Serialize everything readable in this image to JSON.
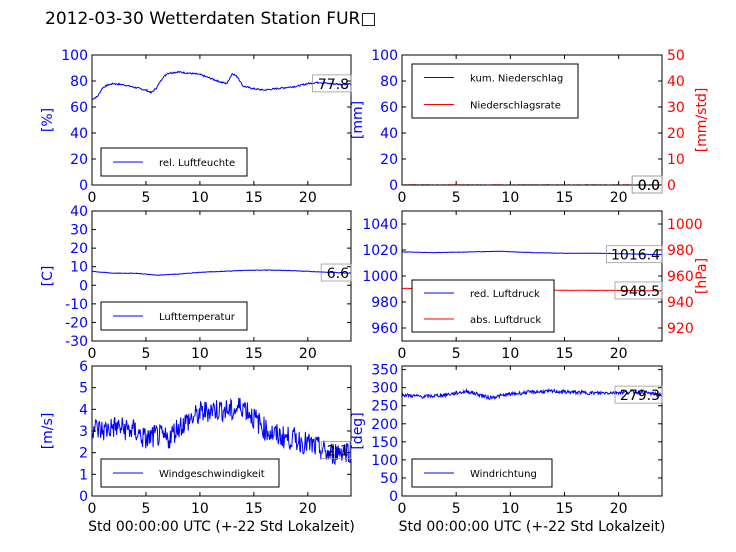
{
  "page": {
    "title": "2012-03-30 Wetterdaten Station FUR□"
  },
  "chart_data": [
    {
      "id": "humidity",
      "type": "line",
      "ylabel": "[%]",
      "xlabel": "",
      "xlim": [
        0,
        24
      ],
      "ylim": [
        0,
        100
      ],
      "xticks": [
        0,
        5,
        10,
        15,
        20
      ],
      "yticks": [
        0,
        20,
        40,
        60,
        80,
        100
      ],
      "last_value_label": "77.8",
      "legend": {
        "position": "lower-left",
        "entries": [
          {
            "name": "rel. Luftfeuchte",
            "color": "#0000ff"
          }
        ]
      },
      "series": [
        {
          "name": "rel. Luftfeuchte",
          "color": "#0000ff",
          "noise": 0.6,
          "points": [
            [
              0,
              66
            ],
            [
              0.5,
              68
            ],
            [
              1,
              75
            ],
            [
              1.5,
              77
            ],
            [
              2,
              78
            ],
            [
              3,
              77
            ],
            [
              4,
              75
            ],
            [
              5,
              73
            ],
            [
              5.5,
              71
            ],
            [
              6,
              75
            ],
            [
              6.5,
              82
            ],
            [
              7,
              86
            ],
            [
              8,
              87
            ],
            [
              9,
              86
            ],
            [
              10,
              85
            ],
            [
              11,
              82
            ],
            [
              12,
              79
            ],
            [
              12.5,
              78
            ],
            [
              13,
              86
            ],
            [
              13.5,
              83
            ],
            [
              14,
              76
            ],
            [
              15,
              74
            ],
            [
              16,
              73
            ],
            [
              17,
              74
            ],
            [
              18,
              75
            ],
            [
              19,
              76
            ],
            [
              20,
              78
            ],
            [
              21,
              79
            ],
            [
              22,
              78
            ],
            [
              23,
              77.5
            ],
            [
              24,
              77.8
            ]
          ]
        }
      ]
    },
    {
      "id": "precip",
      "type": "line",
      "ylabel": "[mm]",
      "y2label": "[mm/std]",
      "xlabel": "",
      "xlim": [
        0,
        24
      ],
      "ylim": [
        0,
        100
      ],
      "y2lim": [
        0,
        50
      ],
      "xticks": [
        0,
        5,
        10,
        15,
        20
      ],
      "yticks": [
        0,
        20,
        40,
        60,
        80,
        100
      ],
      "y2ticks": [
        0,
        10,
        20,
        30,
        40,
        50
      ],
      "last_value_label": "0.0",
      "last_value_label_2": "0.0",
      "legend": {
        "position": "top-left",
        "entries": [
          {
            "name": "kum. Niederschlag",
            "color": "#0000ff"
          },
          {
            "name": "Niederschlagsrate",
            "color": "#ff0000"
          }
        ]
      },
      "series": [
        {
          "name": "kum. Niederschlag",
          "color": "#0000ff",
          "noise": 0,
          "points": [
            [
              0,
              0
            ],
            [
              24,
              0
            ]
          ]
        },
        {
          "name": "Niederschlagsrate",
          "color": "#ff0000",
          "noise": 0.15,
          "axis": "y2",
          "points": [
            [
              0,
              0
            ],
            [
              24,
              0
            ]
          ]
        }
      ]
    },
    {
      "id": "temperature",
      "type": "line",
      "ylabel": "[C]",
      "xlabel": "",
      "xlim": [
        0,
        24
      ],
      "ylim": [
        -30,
        40
      ],
      "xticks": [
        0,
        5,
        10,
        15,
        20
      ],
      "yticks": [
        -30,
        -20,
        -10,
        0,
        10,
        20,
        30,
        40
      ],
      "last_value_label": "6.6",
      "legend": {
        "position": "lower-left",
        "entries": [
          {
            "name": "Lufttemperatur",
            "color": "#0000ff"
          }
        ]
      },
      "series": [
        {
          "name": "Lufttemperatur",
          "color": "#0000ff",
          "noise": 0.15,
          "points": [
            [
              0,
              7.5
            ],
            [
              2,
              6.5
            ],
            [
              4,
              6.5
            ],
            [
              6,
              5.5
            ],
            [
              8,
              6
            ],
            [
              10,
              7
            ],
            [
              12,
              7.5
            ],
            [
              14,
              8
            ],
            [
              16,
              8.2
            ],
            [
              18,
              8
            ],
            [
              20,
              7.5
            ],
            [
              22,
              7
            ],
            [
              24,
              6.6
            ]
          ]
        }
      ]
    },
    {
      "id": "pressure",
      "type": "line",
      "ylabel": "",
      "y2label": "[hPa]",
      "xlabel": "",
      "xlim": [
        0,
        24
      ],
      "ylim": [
        950,
        1050
      ],
      "y2lim": [
        910,
        1010
      ],
      "xticks": [
        0,
        5,
        10,
        15,
        20
      ],
      "yticks": [
        960,
        980,
        1000,
        1020,
        1040
      ],
      "y2ticks": [
        920,
        940,
        960,
        980,
        1000
      ],
      "last_value_label": "1016.4",
      "last_value_label_2": "948.5",
      "legend": {
        "position": "lower-left",
        "entries": [
          {
            "name": "red. Luftdruck",
            "color": "#0000ff"
          },
          {
            "name": "abs. Luftdruck",
            "color": "#ff0000"
          }
        ]
      },
      "series": [
        {
          "name": "red. Luftdruck",
          "color": "#0000ff",
          "noise": 0.15,
          "points": [
            [
              0,
              1018.5
            ],
            [
              3,
              1018
            ],
            [
              6,
              1018.5
            ],
            [
              9,
              1019
            ],
            [
              12,
              1018
            ],
            [
              15,
              1017.5
            ],
            [
              18,
              1017.5
            ],
            [
              21,
              1017
            ],
            [
              24,
              1016.4
            ]
          ]
        },
        {
          "name": "abs. Luftdruck",
          "color": "#ff0000",
          "noise": 0.15,
          "axis": "y2",
          "points": [
            [
              0,
              950.5
            ],
            [
              3,
              950
            ],
            [
              6,
              950.5
            ],
            [
              9,
              950.5
            ],
            [
              12,
              949.5
            ],
            [
              15,
              949
            ],
            [
              18,
              949
            ],
            [
              21,
              948.8
            ],
            [
              24,
              948.5
            ]
          ]
        }
      ]
    },
    {
      "id": "windspeed",
      "type": "line",
      "ylabel": "[m/s]",
      "xlabel": "Std 00:00:00 UTC (+-22 Std Lokalzeit)",
      "xlim": [
        0,
        24
      ],
      "ylim": [
        0,
        6
      ],
      "xticks": [
        0,
        5,
        10,
        15,
        20
      ],
      "yticks": [
        0,
        1,
        2,
        3,
        4,
        5,
        6
      ],
      "last_value_label": "2.1",
      "legend": {
        "position": "lower-left",
        "entries": [
          {
            "name": "Windgeschwindigkeit",
            "color": "#0000ff"
          }
        ]
      },
      "series": [
        {
          "name": "Windgeschwindigkeit",
          "color": "#0000ff",
          "noise": 0.55,
          "points": [
            [
              0,
              3.2
            ],
            [
              1,
              3
            ],
            [
              2,
              3.2
            ],
            [
              3,
              3.1
            ],
            [
              4,
              3
            ],
            [
              5,
              2.6
            ],
            [
              6,
              2.8
            ],
            [
              7,
              2.6
            ],
            [
              8,
              3.2
            ],
            [
              9,
              3.5
            ],
            [
              10,
              3.8
            ],
            [
              11,
              4
            ],
            [
              12,
              4
            ],
            [
              13,
              3.9
            ],
            [
              14,
              4.2
            ],
            [
              15,
              3.6
            ],
            [
              16,
              3.1
            ],
            [
              17,
              2.8
            ],
            [
              18,
              2.7
            ],
            [
              19,
              2.6
            ],
            [
              20,
              2.4
            ],
            [
              21,
              2.2
            ],
            [
              22,
              1.9
            ],
            [
              23,
              2.1
            ],
            [
              24,
              2.1
            ]
          ]
        }
      ]
    },
    {
      "id": "winddir",
      "type": "line",
      "ylabel": "[deg]",
      "xlabel": "Std 00:00:00 UTC (+-22 Std Lokalzeit)",
      "xlim": [
        0,
        24
      ],
      "ylim": [
        0,
        360
      ],
      "xticks": [
        0,
        5,
        10,
        15,
        20
      ],
      "yticks": [
        0,
        50,
        100,
        150,
        200,
        250,
        300,
        350
      ],
      "last_value_label": "279.3",
      "legend": {
        "position": "lower-left",
        "entries": [
          {
            "name": "Windrichtung",
            "color": "#0000ff"
          }
        ]
      },
      "series": [
        {
          "name": "Windrichtung",
          "color": "#0000ff",
          "noise": 5,
          "points": [
            [
              0,
              280
            ],
            [
              2,
              275
            ],
            [
              4,
              280
            ],
            [
              6,
              290
            ],
            [
              7,
              282
            ],
            [
              8,
              272
            ],
            [
              10,
              282
            ],
            [
              12,
              288
            ],
            [
              14,
              290
            ],
            [
              16,
              287
            ],
            [
              18,
              285
            ],
            [
              20,
              287
            ],
            [
              22,
              288
            ],
            [
              24,
              279.3
            ]
          ]
        }
      ]
    }
  ]
}
